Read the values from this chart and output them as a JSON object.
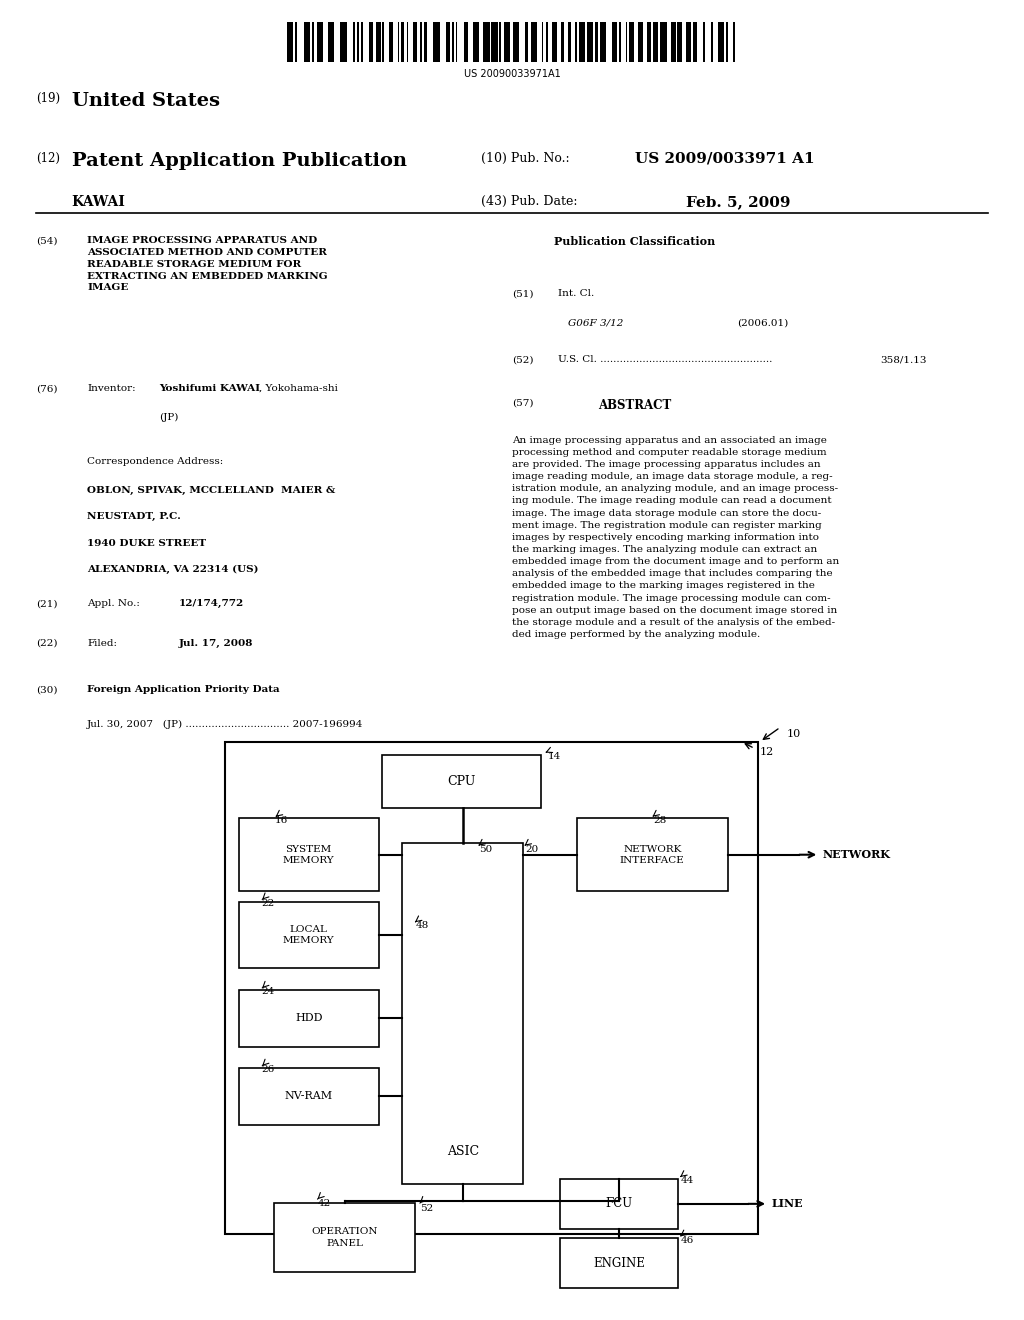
{
  "bg_color": "#ffffff",
  "barcode_text": "US 20090033971A1",
  "header": {
    "country_num": "(19)",
    "country": "United States",
    "type_num": "(12)",
    "type": "Patent Application Publication",
    "pub_num_label": "(10) Pub. No.:",
    "pub_num": "US 2009/0033971 A1",
    "inventor_label": "KAWAI",
    "date_num_label": "(43) Pub. Date:",
    "date": "Feb. 5, 2009"
  },
  "left_col": {
    "item54_num": "(54)",
    "item54_title": "IMAGE PROCESSING APPARATUS AND\nASSOCIATED METHOD AND COMPUTER\nREADABLE STORAGE MEDIUM FOR\nEXTRACTING AN EMBEDDED MARKING\nIMAGE",
    "item76_num": "(76)",
    "item76_label": "Inventor:",
    "item76_bold": "Yoshifumi KAWAI",
    "item76_normal": ", Yokohama-shi",
    "item76_jp": "(JP)",
    "corr_label": "Correspondence Address:",
    "corr_bold1": "OBLON, SPIVAK, MCCLELLAND  MAIER &",
    "corr_bold2": "NEUSTADT, P.C.",
    "corr_bold3": "1940 DUKE STREET",
    "corr_bold4": "ALEXANDRIA, VA 22314 (US)",
    "item21_num": "(21)",
    "item21_label": "Appl. No.:",
    "item21_value": "12/174,772",
    "item22_num": "(22)",
    "item22_label": "Filed:",
    "item22_value": "Jul. 17, 2008",
    "item30_num": "(30)",
    "item30_label": "Foreign Application Priority Data",
    "item30_detail": "Jul. 30, 2007   (JP) ................................ 2007-196994"
  },
  "right_col": {
    "pub_class_title": "Publication Classification",
    "item51_num": "(51)",
    "item51_label": "Int. Cl.",
    "item51_class": "G06F 3/12",
    "item51_year": "(2006.01)",
    "item52_num": "(52)",
    "item52_label": "U.S. Cl. .....................................................",
    "item52_value": "358/1.13",
    "item57_num": "(57)",
    "item57_label": "ABSTRACT",
    "abstract_lines": [
      "An image processing apparatus and an associated an image",
      "processing method and computer readable storage medium",
      "are provided. The image processing apparatus includes an",
      "image reading module, an image data storage module, a reg-",
      "istration module, an analyzing module, and an image process-",
      "ing module. The image reading module can read a document",
      "image. The image data storage module can store the docu-",
      "ment image. The registration module can register marking",
      "images by respectively encoding marking information into",
      "the marking images. The analyzing module can extract an",
      "embedded image from the document image and to perform an",
      "analysis of the embedded image that includes comparing the",
      "embedded image to the marking images registered in the",
      "registration module. The image processing module can com-",
      "pose an output image based on the document image stored in",
      "the storage module and a result of the analysis of the embed-",
      "ded image performed by the analyzing module."
    ]
  }
}
